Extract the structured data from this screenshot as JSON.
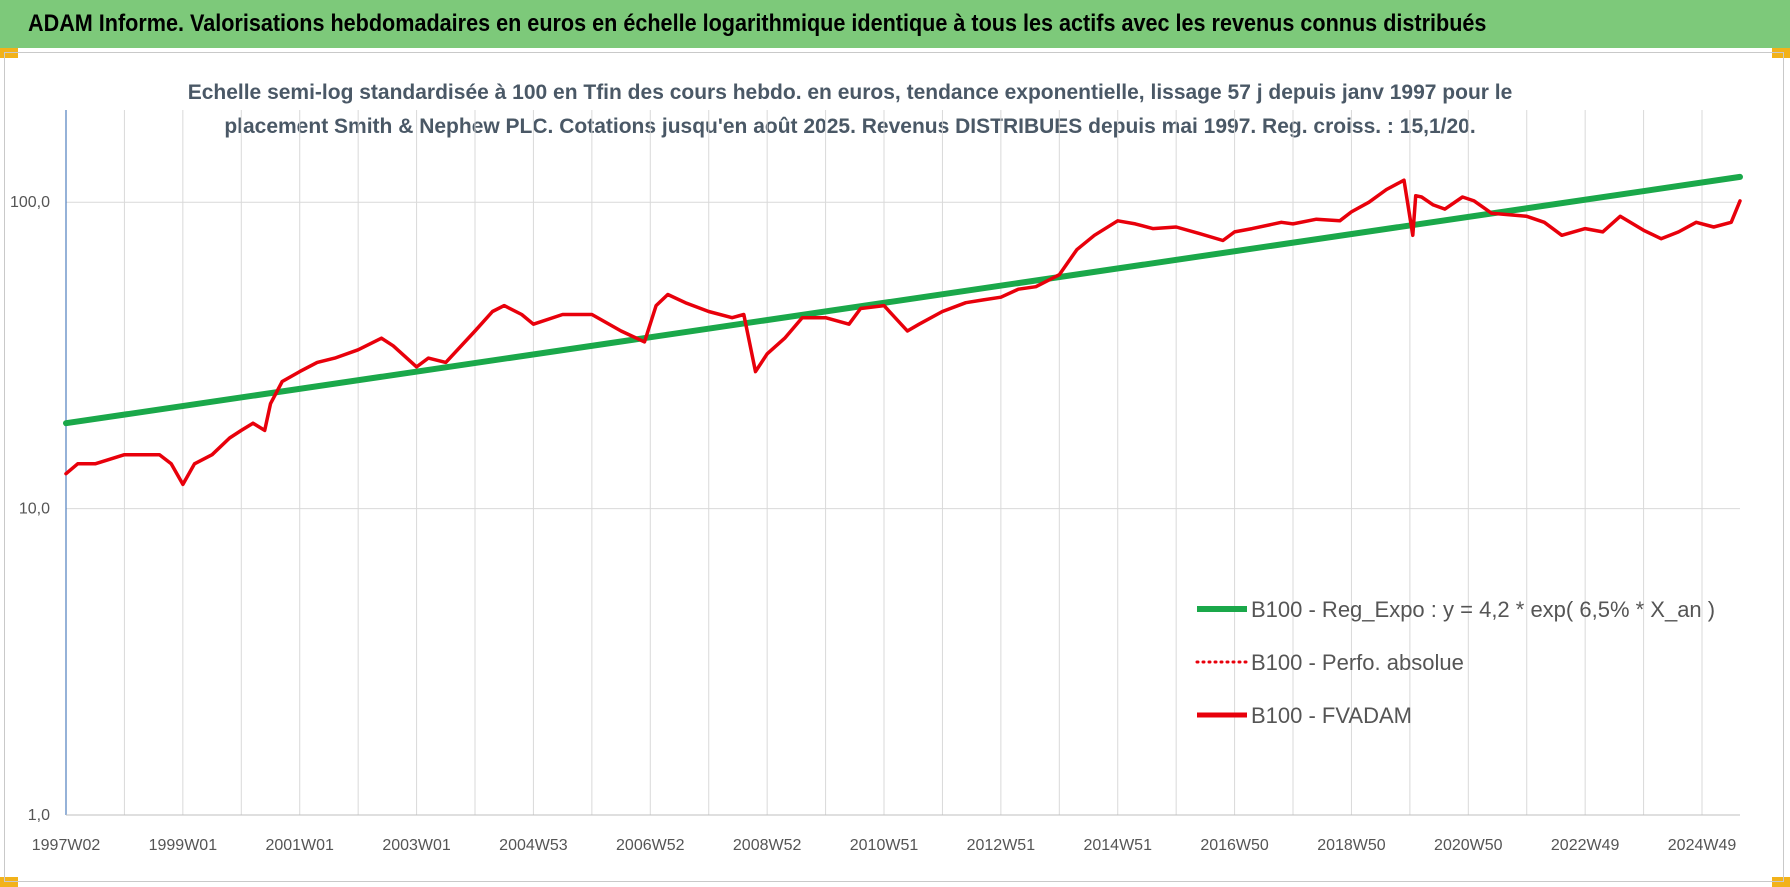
{
  "header": {
    "title": "ADAM Informe. Valorisations hebdomadaires en euros en échelle logarithmique identique à tous les actifs avec les revenus connus distribués"
  },
  "colors": {
    "banner": "#7dc97a",
    "corner": "#f2b21a",
    "regression": "#1aa84a",
    "fvadam": "#e8000b",
    "perfo": "#e8000b",
    "grid": "#d9d9d9"
  },
  "chart_data": {
    "type": "line",
    "title_lines": [
      "Echelle semi-log standardisée à 100 en Tfin des cours hebdo. en euros, tendance exponentielle, lissage 57 j depuis janv 1997 pour le",
      "placement Smith & Nephew PLC. Cotations jusqu'en août 2025. Revenus DISTRIBUES depuis mai 1997. Reg. croiss. : 15,1/20."
    ],
    "y_scale": "log",
    "ylim": [
      1,
      200
    ],
    "y_ticks": [
      {
        "value": 1,
        "label": "1,0"
      },
      {
        "value": 10,
        "label": "10,0"
      },
      {
        "value": 100,
        "label": "100,0"
      }
    ],
    "x_range": [
      1997.0,
      2025.65
    ],
    "x_ticks": [
      {
        "pos": 1997.0,
        "label": "1997W02"
      },
      {
        "pos": 1999.0,
        "label": "1999W01"
      },
      {
        "pos": 2001.0,
        "label": "2001W01"
      },
      {
        "pos": 2003.0,
        "label": "2003W01"
      },
      {
        "pos": 2005.0,
        "label": "2004W53"
      },
      {
        "pos": 2007.0,
        "label": "2006W52"
      },
      {
        "pos": 2009.0,
        "label": "2008W52"
      },
      {
        "pos": 2011.0,
        "label": "2010W51"
      },
      {
        "pos": 2013.0,
        "label": "2012W51"
      },
      {
        "pos": 2015.0,
        "label": "2014W51"
      },
      {
        "pos": 2017.0,
        "label": "2016W50"
      },
      {
        "pos": 2019.0,
        "label": "2018W50"
      },
      {
        "pos": 2021.0,
        "label": "2020W50"
      },
      {
        "pos": 2023.0,
        "label": "2022W49"
      },
      {
        "pos": 2025.0,
        "label": "2024W49"
      }
    ],
    "grid": true,
    "legend_position": "bottom-right",
    "series": [
      {
        "name": "B100 - Reg_Expo : y = 4,2 * exp( 6,5% *  X_an )",
        "style": "solid-green",
        "x": [
          1997.0,
          2025.65
        ],
        "y": [
          19,
          121
        ]
      },
      {
        "name": "B100 - Perfo. absolue",
        "style": "dotted-red",
        "x": [],
        "y": []
      },
      {
        "name": "B100 - FVADAM",
        "style": "solid-red",
        "x": [
          1997.0,
          1997.2,
          1997.5,
          1998.0,
          1998.3,
          1998.6,
          1998.8,
          1999.0,
          1999.2,
          1999.5,
          1999.8,
          2000.0,
          2000.2,
          2000.4,
          2000.5,
          2000.7,
          2001.0,
          2001.3,
          2001.6,
          2002.0,
          2002.4,
          2002.6,
          2003.0,
          2003.2,
          2003.5,
          2004.0,
          2004.3,
          2004.5,
          2004.8,
          2005.0,
          2005.5,
          2006.0,
          2006.5,
          2006.9,
          2007.1,
          2007.3,
          2007.6,
          2008.0,
          2008.4,
          2008.6,
          2008.8,
          2009.0,
          2009.3,
          2009.6,
          2010.0,
          2010.4,
          2010.6,
          2011.0,
          2011.4,
          2011.6,
          2012.0,
          2012.4,
          2012.7,
          2013.0,
          2013.3,
          2013.6,
          2014.0,
          2014.3,
          2014.6,
          2015.0,
          2015.3,
          2015.6,
          2016.0,
          2016.4,
          2016.8,
          2017.0,
          2017.3,
          2017.8,
          2018.0,
          2018.4,
          2018.8,
          2019.0,
          2019.3,
          2019.6,
          2019.9,
          2020.05,
          2020.1,
          2020.2,
          2020.4,
          2020.6,
          2020.9,
          2021.1,
          2021.4,
          2021.7,
          2022.0,
          2022.3,
          2022.6,
          2023.0,
          2023.3,
          2023.6,
          2024.0,
          2024.3,
          2024.6,
          2024.9,
          2025.2,
          2025.5,
          2025.65
        ],
        "y": [
          13,
          14,
          14,
          15,
          15,
          15,
          14,
          12,
          14,
          15,
          17,
          18,
          19,
          18,
          22,
          26,
          28,
          30,
          31,
          33,
          36,
          34,
          29,
          31,
          30,
          38,
          44,
          46,
          43,
          40,
          43,
          43,
          38,
          35,
          46,
          50,
          47,
          44,
          42,
          43,
          28,
          32,
          36,
          42,
          42,
          40,
          45,
          46,
          38,
          40,
          44,
          47,
          48,
          49,
          52,
          53,
          58,
          70,
          78,
          87,
          85,
          82,
          83,
          79,
          75,
          80,
          82,
          86,
          85,
          88,
          87,
          93,
          100,
          110,
          118,
          78,
          105,
          104,
          98,
          95,
          104,
          101,
          92,
          91,
          90,
          86,
          78,
          82,
          80,
          90,
          81,
          76,
          80,
          86,
          83,
          86,
          101
        ]
      }
    ]
  }
}
